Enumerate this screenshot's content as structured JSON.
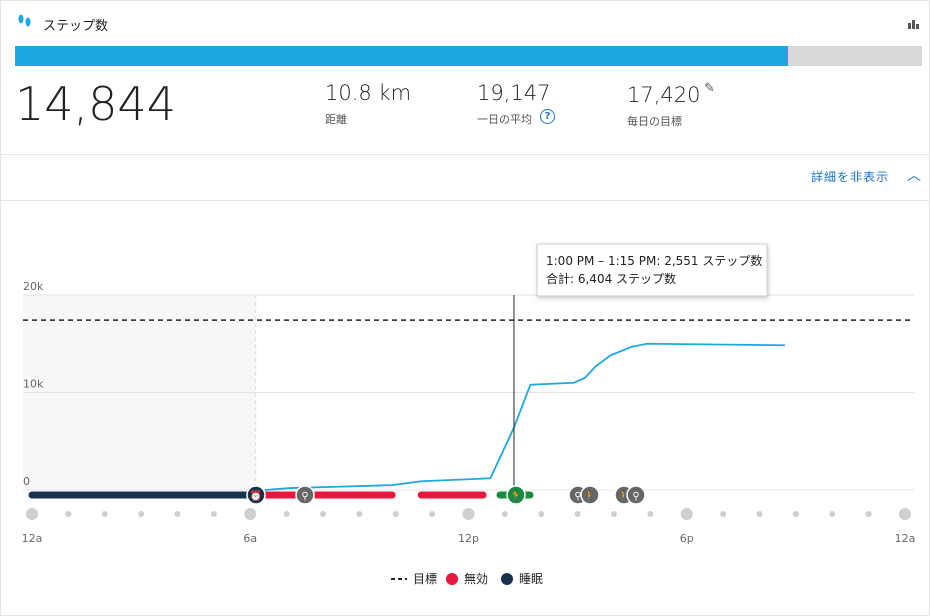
{
  "header": {
    "title": "ステップ数"
  },
  "stats": {
    "steps": {
      "value": 14844,
      "label": "14,844"
    },
    "goal": {
      "value": 17420,
      "label": "17,420"
    },
    "goal_label": "毎日の目標",
    "distance": "10.8 km",
    "distance_label": "距離",
    "average": "19,147",
    "average_label": "一日の平均"
  },
  "toggle": "詳細を非表示",
  "chart_data": {
    "type": "line",
    "x": [
      6.4,
      7.1,
      8.5,
      9.9,
      10.7,
      12.0,
      12.6,
      13.25,
      13.7,
      14.9,
      15.2,
      15.5,
      15.9,
      16.5,
      16.9,
      20.7
    ],
    "series": [
      {
        "color": "#1ea7e1",
        "values": [
          0,
          200,
          350,
          500,
          900,
          1100,
          1200,
          6404,
          10800,
          11000,
          11500,
          12700,
          13800,
          14700,
          15000,
          14844
        ]
      }
    ],
    "goal": {
      "name": "目標",
      "value": 17420,
      "color": "#222222"
    },
    "inactive": {
      "name": "無効",
      "color": "#e8173c",
      "ranges": [
        [
          6.4,
          7.25
        ],
        [
          7.8,
          9.9
        ],
        [
          10.7,
          12.4
        ]
      ]
    },
    "sleep": {
      "name": "睡眠",
      "color": "#17324f",
      "ranges": [
        [
          0,
          6.15
        ]
      ]
    },
    "cursor": 13.25,
    "tooltip": [
      "1:00 PM – 1:15 PM: 2,551 ステップ数",
      "合計: 6,404 ステップ数"
    ],
    "xlim": [
      0,
      24
    ],
    "xticks": [
      {
        "value": 0,
        "label": "12a"
      },
      {
        "value": 6,
        "label": "6a"
      },
      {
        "value": 12,
        "label": "12p"
      },
      {
        "value": 18,
        "label": "6p"
      },
      {
        "value": 24,
        "label": "12a"
      }
    ],
    "ylim": [
      0,
      20000
    ],
    "yticks": [
      0,
      {
        "value": 10000,
        "label": "10k"
      },
      {
        "value": 20000,
        "label": "20k"
      }
    ],
    "grid": true
  }
}
